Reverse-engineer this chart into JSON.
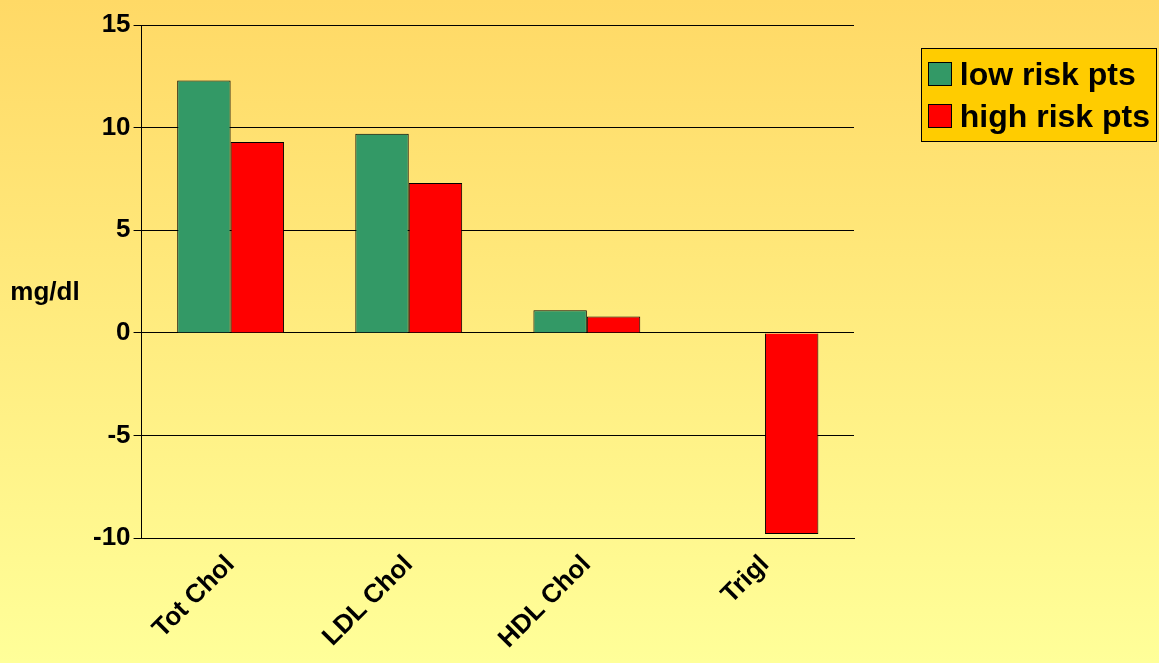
{
  "chart_data": {
    "type": "bar",
    "ylabel": "mg/dl",
    "categories": [
      "Tot Chol",
      "LDL Chol",
      "HDL Chol",
      "Trigl"
    ],
    "series": [
      {
        "name": "low risk pts",
        "color": "#339966",
        "values": [
          12.3,
          9.7,
          1.1,
          0
        ]
      },
      {
        "name": "high risk pts",
        "color": "#ff0000",
        "values": [
          9.3,
          7.3,
          0.8,
          -9.8
        ]
      }
    ],
    "ylim": [
      -10,
      15
    ],
    "yticks": [
      -10,
      -5,
      0,
      5,
      10,
      15
    ],
    "grid": "y",
    "legend": "top right"
  }
}
